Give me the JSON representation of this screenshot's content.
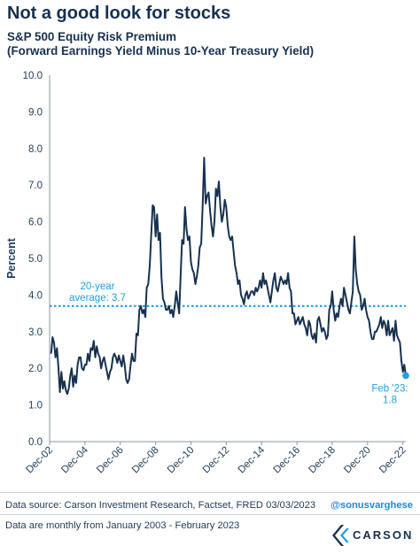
{
  "header": {
    "title": "Not a good look for stocks",
    "subtitle_line1": "S&P 500 Equity Risk Premium",
    "subtitle_line2": "(Forward Earnings Yield Minus 10-Year Treasury Yield)"
  },
  "footer": {
    "source": "Data source: Carson Investment Research, Factset, FRED    03/03/2023",
    "handle": "@sonusvarghese",
    "note": "Data are monthly from January 2003 - February 2023",
    "brand": "CARSON"
  },
  "colors": {
    "line": "#17314f",
    "average": "#1f9fe0",
    "endpoint": "#1f9fe0",
    "axis_text": "#1f3b5b"
  },
  "chart_data": {
    "type": "line",
    "ylabel": "Percent",
    "ylim": [
      0,
      10
    ],
    "yticks": [
      "0.0",
      "1.0",
      "2.0",
      "3.0",
      "4.0",
      "5.0",
      "6.0",
      "7.0",
      "8.0",
      "9.0",
      "10.0"
    ],
    "xlim": [
      "2002-12",
      "2023-02"
    ],
    "xticks": [
      {
        "date": "2002-12",
        "label": "Dec-02"
      },
      {
        "date": "2004-12",
        "label": "Dec-04"
      },
      {
        "date": "2006-12",
        "label": "Dec-06"
      },
      {
        "date": "2008-12",
        "label": "Dec-08"
      },
      {
        "date": "2010-12",
        "label": "Dec-10"
      },
      {
        "date": "2012-12",
        "label": "Dec-12"
      },
      {
        "date": "2014-12",
        "label": "Dec-14"
      },
      {
        "date": "2016-12",
        "label": "Dec-16"
      },
      {
        "date": "2018-12",
        "label": "Dec-18"
      },
      {
        "date": "2020-12",
        "label": "Dec-20"
      },
      {
        "date": "2022-12",
        "label": "Dec-22"
      }
    ],
    "grid": false,
    "average": {
      "value": 3.7,
      "label_line1": "20-year",
      "label_line2": "average: 3.7"
    },
    "end_annotation": {
      "date": "2023-02",
      "value": 1.8,
      "label_line1": "Feb '23:",
      "label_line2": "1.8"
    },
    "series": [
      {
        "points": [
          [
            "2003-01",
            2.4
          ],
          [
            "2003-02",
            2.85
          ],
          [
            "2003-03",
            2.7
          ],
          [
            "2003-04",
            2.3
          ],
          [
            "2003-05",
            2.55
          ],
          [
            "2003-06",
            2.0
          ],
          [
            "2003-07",
            1.35
          ],
          [
            "2003-08",
            1.9
          ],
          [
            "2003-09",
            1.45
          ],
          [
            "2003-10",
            1.65
          ],
          [
            "2003-11",
            1.4
          ],
          [
            "2003-12",
            1.3
          ],
          [
            "2004-01",
            1.45
          ],
          [
            "2004-02",
            1.8
          ],
          [
            "2004-03",
            2.0
          ],
          [
            "2004-04",
            1.5
          ],
          [
            "2004-05",
            1.8
          ],
          [
            "2004-06",
            1.6
          ],
          [
            "2004-07",
            2.1
          ],
          [
            "2004-08",
            2.3
          ],
          [
            "2004-09",
            2.3
          ],
          [
            "2004-10",
            2.0
          ],
          [
            "2004-11",
            1.95
          ],
          [
            "2004-12",
            2.1
          ],
          [
            "2005-01",
            2.1
          ],
          [
            "2005-02",
            2.4
          ],
          [
            "2005-03",
            2.2
          ],
          [
            "2005-04",
            2.55
          ],
          [
            "2005-05",
            2.5
          ],
          [
            "2005-06",
            2.75
          ],
          [
            "2005-07",
            2.3
          ],
          [
            "2005-08",
            2.6
          ],
          [
            "2005-09",
            2.4
          ],
          [
            "2005-10",
            2.3
          ],
          [
            "2005-11",
            2.0
          ],
          [
            "2005-12",
            2.2
          ],
          [
            "2006-01",
            2.3
          ],
          [
            "2006-02",
            2.1
          ],
          [
            "2006-03",
            1.9
          ],
          [
            "2006-04",
            1.7
          ],
          [
            "2006-05",
            1.9
          ],
          [
            "2006-06",
            2.0
          ],
          [
            "2006-07",
            2.3
          ],
          [
            "2006-08",
            2.4
          ],
          [
            "2006-09",
            2.3
          ],
          [
            "2006-10",
            2.15
          ],
          [
            "2006-11",
            2.35
          ],
          [
            "2006-12",
            2.2
          ],
          [
            "2007-01",
            2.05
          ],
          [
            "2007-02",
            2.35
          ],
          [
            "2007-03",
            2.1
          ],
          [
            "2007-04",
            1.7
          ],
          [
            "2007-05",
            1.6
          ],
          [
            "2007-06",
            1.7
          ],
          [
            "2007-07",
            2.1
          ],
          [
            "2007-08",
            2.4
          ],
          [
            "2007-09",
            2.2
          ],
          [
            "2007-10",
            2.2
          ],
          [
            "2007-11",
            2.95
          ],
          [
            "2007-12",
            2.9
          ],
          [
            "2008-01",
            3.6
          ],
          [
            "2008-02",
            3.7
          ],
          [
            "2008-03",
            3.5
          ],
          [
            "2008-04",
            3.6
          ],
          [
            "2008-05",
            3.4
          ],
          [
            "2008-06",
            4.2
          ],
          [
            "2008-07",
            4.3
          ],
          [
            "2008-08",
            4.8
          ],
          [
            "2008-09",
            5.6
          ],
          [
            "2008-10",
            6.45
          ],
          [
            "2008-11",
            6.4
          ],
          [
            "2008-12",
            5.6
          ],
          [
            "2009-01",
            6.2
          ],
          [
            "2009-02",
            5.5
          ],
          [
            "2009-03",
            5.7
          ],
          [
            "2009-04",
            4.5
          ],
          [
            "2009-05",
            3.9
          ],
          [
            "2009-06",
            3.8
          ],
          [
            "2009-07",
            3.6
          ],
          [
            "2009-08",
            3.6
          ],
          [
            "2009-09",
            3.7
          ],
          [
            "2009-10",
            3.5
          ],
          [
            "2009-11",
            3.6
          ],
          [
            "2009-12",
            3.4
          ],
          [
            "2010-01",
            3.7
          ],
          [
            "2010-02",
            4.1
          ],
          [
            "2010-03",
            3.8
          ],
          [
            "2010-04",
            3.5
          ],
          [
            "2010-05",
            4.5
          ],
          [
            "2010-06",
            5.5
          ],
          [
            "2010-07",
            5.4
          ],
          [
            "2010-08",
            6.4
          ],
          [
            "2010-09",
            5.8
          ],
          [
            "2010-10",
            5.5
          ],
          [
            "2010-11",
            5.6
          ],
          [
            "2010-12",
            4.9
          ],
          [
            "2011-01",
            4.7
          ],
          [
            "2011-02",
            4.6
          ],
          [
            "2011-03",
            4.3
          ],
          [
            "2011-04",
            4.5
          ],
          [
            "2011-05",
            4.8
          ],
          [
            "2011-06",
            5.3
          ],
          [
            "2011-07",
            5.4
          ],
          [
            "2011-08",
            6.5
          ],
          [
            "2011-09",
            7.75
          ],
          [
            "2011-10",
            6.5
          ],
          [
            "2011-11",
            6.7
          ],
          [
            "2011-12",
            6.8
          ],
          [
            "2012-01",
            6.3
          ],
          [
            "2012-02",
            5.9
          ],
          [
            "2012-03",
            5.6
          ],
          [
            "2012-04",
            6.0
          ],
          [
            "2012-05",
            6.9
          ],
          [
            "2012-06",
            6.7
          ],
          [
            "2012-07",
            7.1
          ],
          [
            "2012-08",
            6.4
          ],
          [
            "2012-09",
            6.0
          ],
          [
            "2012-10",
            6.2
          ],
          [
            "2012-11",
            6.6
          ],
          [
            "2012-12",
            6.4
          ],
          [
            "2013-01",
            5.9
          ],
          [
            "2013-02",
            5.6
          ],
          [
            "2013-03",
            5.5
          ],
          [
            "2013-04",
            5.6
          ],
          [
            "2013-05",
            5.2
          ],
          [
            "2013-06",
            4.8
          ],
          [
            "2013-07",
            4.6
          ],
          [
            "2013-08",
            4.3
          ],
          [
            "2013-09",
            4.4
          ],
          [
            "2013-10",
            4.0
          ],
          [
            "2013-11",
            3.9
          ],
          [
            "2013-12",
            3.75
          ],
          [
            "2014-01",
            4.0
          ],
          [
            "2014-02",
            4.1
          ],
          [
            "2014-03",
            3.9
          ],
          [
            "2014-04",
            4.0
          ],
          [
            "2014-05",
            4.1
          ],
          [
            "2014-06",
            4.1
          ],
          [
            "2014-07",
            4.0
          ],
          [
            "2014-08",
            4.2
          ],
          [
            "2014-09",
            4.1
          ],
          [
            "2014-10",
            4.2
          ],
          [
            "2014-11",
            4.4
          ],
          [
            "2014-12",
            4.2
          ],
          [
            "2015-01",
            4.6
          ],
          [
            "2015-02",
            4.3
          ],
          [
            "2015-03",
            4.4
          ],
          [
            "2015-04",
            4.2
          ],
          [
            "2015-05",
            4.0
          ],
          [
            "2015-06",
            3.8
          ],
          [
            "2015-07",
            4.1
          ],
          [
            "2015-08",
            4.4
          ],
          [
            "2015-09",
            4.6
          ],
          [
            "2015-10",
            4.2
          ],
          [
            "2015-11",
            4.1
          ],
          [
            "2015-12",
            4.3
          ],
          [
            "2016-01",
            4.5
          ],
          [
            "2016-02",
            4.4
          ],
          [
            "2016-03",
            4.3
          ],
          [
            "2016-04",
            4.4
          ],
          [
            "2016-05",
            4.3
          ],
          [
            "2016-06",
            4.6
          ],
          [
            "2016-07",
            4.2
          ],
          [
            "2016-08",
            4.1
          ],
          [
            "2016-09",
            3.5
          ],
          [
            "2016-10",
            3.5
          ],
          [
            "2016-11",
            3.2
          ],
          [
            "2016-12",
            3.3
          ],
          [
            "2017-01",
            3.4
          ],
          [
            "2017-02",
            3.2
          ],
          [
            "2017-03",
            3.3
          ],
          [
            "2017-04",
            3.4
          ],
          [
            "2017-05",
            3.2
          ],
          [
            "2017-06",
            3.1
          ],
          [
            "2017-07",
            2.9
          ],
          [
            "2017-08",
            3.3
          ],
          [
            "2017-09",
            3.2
          ],
          [
            "2017-10",
            2.9
          ],
          [
            "2017-11",
            2.8
          ],
          [
            "2017-12",
            2.95
          ],
          [
            "2018-01",
            2.7
          ],
          [
            "2018-02",
            3.3
          ],
          [
            "2018-03",
            3.4
          ],
          [
            "2018-04",
            3.2
          ],
          [
            "2018-05",
            3.0
          ],
          [
            "2018-06",
            3.1
          ],
          [
            "2018-07",
            3.0
          ],
          [
            "2018-08",
            2.8
          ],
          [
            "2018-09",
            2.9
          ],
          [
            "2018-10",
            3.6
          ],
          [
            "2018-11",
            3.7
          ],
          [
            "2018-12",
            4.1
          ],
          [
            "2019-01",
            3.6
          ],
          [
            "2019-02",
            3.3
          ],
          [
            "2019-03",
            3.5
          ],
          [
            "2019-04",
            3.4
          ],
          [
            "2019-05",
            3.7
          ],
          [
            "2019-06",
            3.9
          ],
          [
            "2019-07",
            3.7
          ],
          [
            "2019-08",
            4.2
          ],
          [
            "2019-09",
            4.0
          ],
          [
            "2019-10",
            3.8
          ],
          [
            "2019-11",
            3.6
          ],
          [
            "2019-12",
            3.5
          ],
          [
            "2020-01",
            3.8
          ],
          [
            "2020-02",
            4.1
          ],
          [
            "2020-03",
            5.6
          ],
          [
            "2020-04",
            4.7
          ],
          [
            "2020-05",
            4.3
          ],
          [
            "2020-06",
            4.1
          ],
          [
            "2020-07",
            4.0
          ],
          [
            "2020-08",
            3.6
          ],
          [
            "2020-09",
            3.7
          ],
          [
            "2020-10",
            3.9
          ],
          [
            "2020-11",
            3.6
          ],
          [
            "2020-12",
            3.4
          ],
          [
            "2021-01",
            3.3
          ],
          [
            "2021-02",
            3.0
          ],
          [
            "2021-03",
            2.8
          ],
          [
            "2021-04",
            2.8
          ],
          [
            "2021-05",
            3.0
          ],
          [
            "2021-06",
            3.0
          ],
          [
            "2021-07",
            3.1
          ],
          [
            "2021-08",
            3.2
          ],
          [
            "2021-09",
            3.4
          ],
          [
            "2021-10",
            3.1
          ],
          [
            "2021-11",
            3.3
          ],
          [
            "2021-12",
            3.2
          ],
          [
            "2022-01",
            2.9
          ],
          [
            "2022-02",
            3.3
          ],
          [
            "2022-03",
            2.9
          ],
          [
            "2022-04",
            3.0
          ],
          [
            "2022-05",
            3.1
          ],
          [
            "2022-06",
            2.75
          ],
          [
            "2022-07",
            3.3
          ],
          [
            "2022-08",
            2.9
          ],
          [
            "2022-09",
            2.8
          ],
          [
            "2022-10",
            2.7
          ],
          [
            "2022-11",
            2.2
          ],
          [
            "2022-12",
            1.9
          ],
          [
            "2023-01",
            2.1
          ],
          [
            "2023-02",
            1.8
          ]
        ]
      }
    ]
  }
}
